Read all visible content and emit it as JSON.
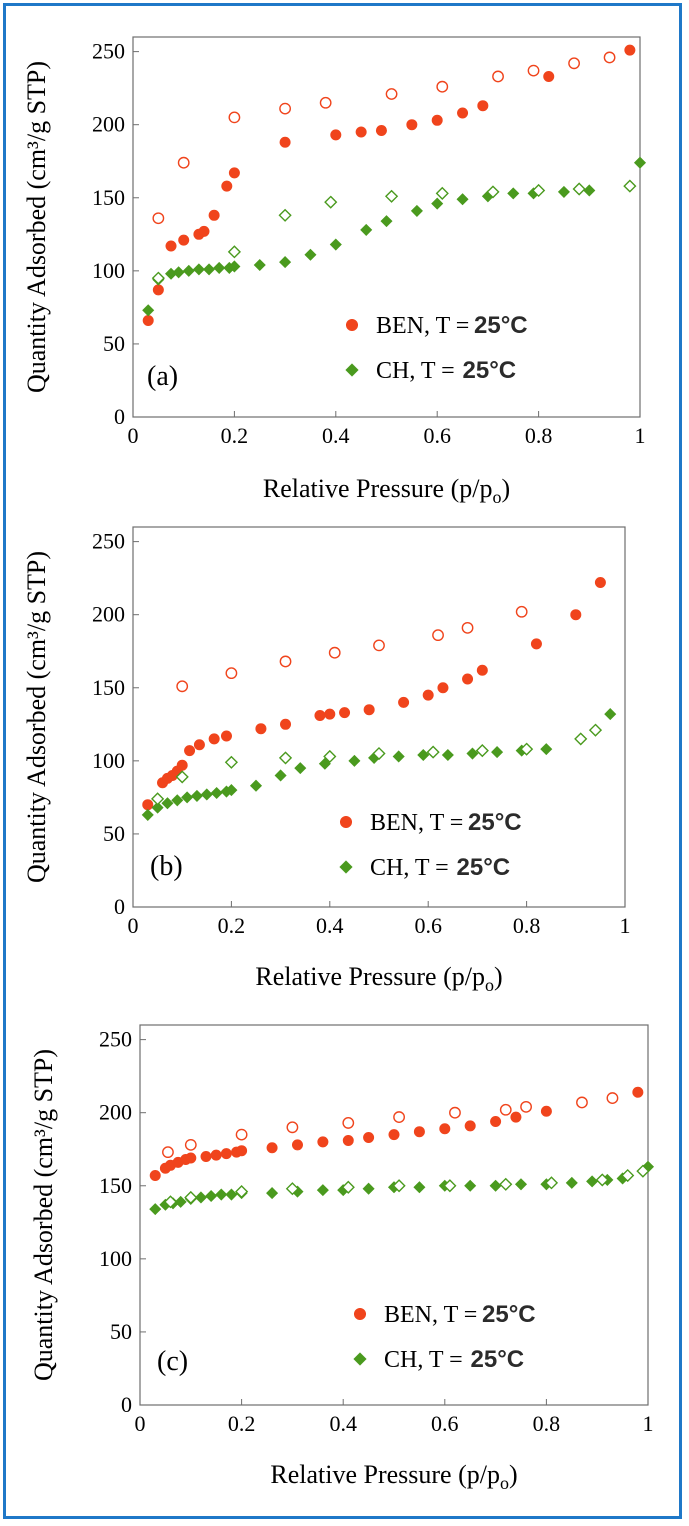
{
  "colors": {
    "ben": "#f0441c",
    "ch": "#4a9a1e",
    "frame": "#1f78c8"
  },
  "chart_data": [
    {
      "type": "scatter",
      "panel_label": "(a)",
      "xlabel": "Relative Pressure (p/p",
      "xlabel_sub": "o",
      "xlabel_end": ")",
      "ylabel": "Quantity Adsorbed (cm³/g STP)",
      "xlim": [
        0,
        1
      ],
      "ylim": [
        0,
        260
      ],
      "x_ticks": [
        "0",
        "0.2",
        "0.4",
        "0.6",
        "0.8",
        "1"
      ],
      "y_ticks": [
        "0",
        "50",
        "100",
        "150",
        "200",
        "250"
      ],
      "legend": [
        {
          "name": "BEN, T =",
          "temp": "25°C",
          "marker": "circle"
        },
        {
          "name": "CH, T =",
          "temp": "25°C",
          "marker": "diamond"
        }
      ],
      "series": [
        {
          "name": "BEN adsorption",
          "marker": "circle",
          "filled": true,
          "points": [
            [
              0.03,
              66
            ],
            [
              0.05,
              87
            ],
            [
              0.075,
              117
            ],
            [
              0.1,
              121
            ],
            [
              0.13,
              125
            ],
            [
              0.14,
              127
            ],
            [
              0.16,
              138
            ],
            [
              0.185,
              158
            ],
            [
              0.2,
              167
            ],
            [
              0.3,
              188
            ],
            [
              0.4,
              193
            ],
            [
              0.45,
              195
            ],
            [
              0.49,
              196
            ],
            [
              0.55,
              200
            ],
            [
              0.6,
              203
            ],
            [
              0.65,
              208
            ],
            [
              0.69,
              213
            ],
            [
              0.82,
              233
            ],
            [
              0.98,
              251
            ]
          ]
        },
        {
          "name": "BEN desorption",
          "marker": "circle",
          "filled": false,
          "points": [
            [
              0.05,
              136
            ],
            [
              0.1,
              174
            ],
            [
              0.2,
              205
            ],
            [
              0.3,
              211
            ],
            [
              0.38,
              215
            ],
            [
              0.51,
              221
            ],
            [
              0.61,
              226
            ],
            [
              0.72,
              233
            ],
            [
              0.79,
              237
            ],
            [
              0.87,
              242
            ],
            [
              0.94,
              246
            ]
          ]
        },
        {
          "name": "CH adsorption",
          "marker": "diamond",
          "filled": true,
          "points": [
            [
              0.03,
              73
            ],
            [
              0.05,
              94
            ],
            [
              0.075,
              98
            ],
            [
              0.09,
              99
            ],
            [
              0.11,
              100
            ],
            [
              0.13,
              101
            ],
            [
              0.15,
              101
            ],
            [
              0.17,
              102
            ],
            [
              0.19,
              102
            ],
            [
              0.2,
              103
            ],
            [
              0.25,
              104
            ],
            [
              0.3,
              106
            ],
            [
              0.35,
              111
            ],
            [
              0.4,
              118
            ],
            [
              0.46,
              128
            ],
            [
              0.5,
              134
            ],
            [
              0.56,
              141
            ],
            [
              0.6,
              146
            ],
            [
              0.65,
              149
            ],
            [
              0.7,
              151
            ],
            [
              0.75,
              153
            ],
            [
              0.79,
              153
            ],
            [
              0.85,
              154
            ],
            [
              0.9,
              155
            ],
            [
              1.0,
              174
            ]
          ]
        },
        {
          "name": "CH desorption",
          "marker": "diamond",
          "filled": false,
          "points": [
            [
              0.05,
              95
            ],
            [
              0.2,
              113
            ],
            [
              0.3,
              138
            ],
            [
              0.39,
              147
            ],
            [
              0.51,
              151
            ],
            [
              0.61,
              153
            ],
            [
              0.71,
              154
            ],
            [
              0.8,
              155
            ],
            [
              0.88,
              156
            ],
            [
              0.98,
              158
            ]
          ]
        }
      ]
    },
    {
      "type": "scatter",
      "panel_label": "(b)",
      "xlabel": "Relative Pressure (p/p",
      "xlabel_sub": "o",
      "xlabel_end": ")",
      "ylabel": "Quantity Adsorbed (cm³/g STP)",
      "xlim": [
        0,
        1
      ],
      "ylim": [
        0,
        260
      ],
      "x_ticks": [
        "0",
        "0.2",
        "0.4",
        "0.6",
        "0.8",
        "1"
      ],
      "y_ticks": [
        "0",
        "50",
        "100",
        "150",
        "200",
        "250"
      ],
      "legend": [
        {
          "name": "BEN, T =",
          "temp": "25°C",
          "marker": "circle"
        },
        {
          "name": "CH, T =",
          "temp": "25°C",
          "marker": "diamond"
        }
      ],
      "series": [
        {
          "name": "BEN adsorption",
          "marker": "circle",
          "filled": true,
          "points": [
            [
              0.03,
              70
            ],
            [
              0.06,
              85
            ],
            [
              0.07,
              88
            ],
            [
              0.08,
              90
            ],
            [
              0.09,
              93
            ],
            [
              0.1,
              97
            ],
            [
              0.115,
              107
            ],
            [
              0.135,
              111
            ],
            [
              0.165,
              115
            ],
            [
              0.19,
              117
            ],
            [
              0.26,
              122
            ],
            [
              0.31,
              125
            ],
            [
              0.38,
              131
            ],
            [
              0.4,
              132
            ],
            [
              0.43,
              133
            ],
            [
              0.48,
              135
            ],
            [
              0.55,
              140
            ],
            [
              0.6,
              145
            ],
            [
              0.63,
              150
            ],
            [
              0.68,
              156
            ],
            [
              0.71,
              162
            ],
            [
              0.82,
              180
            ],
            [
              0.9,
              200
            ],
            [
              0.95,
              222
            ]
          ]
        },
        {
          "name": "BEN desorption",
          "marker": "circle",
          "filled": false,
          "points": [
            [
              0.1,
              151
            ],
            [
              0.2,
              160
            ],
            [
              0.31,
              168
            ],
            [
              0.41,
              174
            ],
            [
              0.5,
              179
            ],
            [
              0.62,
              186
            ],
            [
              0.68,
              191
            ],
            [
              0.79,
              202
            ]
          ]
        },
        {
          "name": "CH adsorption",
          "marker": "diamond",
          "filled": true,
          "points": [
            [
              0.03,
              63
            ],
            [
              0.05,
              68
            ],
            [
              0.07,
              71
            ],
            [
              0.09,
              73
            ],
            [
              0.11,
              75
            ],
            [
              0.13,
              76
            ],
            [
              0.15,
              77
            ],
            [
              0.17,
              78
            ],
            [
              0.19,
              79
            ],
            [
              0.2,
              80
            ],
            [
              0.25,
              83
            ],
            [
              0.3,
              90
            ],
            [
              0.34,
              95
            ],
            [
              0.39,
              98
            ],
            [
              0.45,
              100
            ],
            [
              0.49,
              102
            ],
            [
              0.54,
              103
            ],
            [
              0.59,
              104
            ],
            [
              0.64,
              104
            ],
            [
              0.69,
              105
            ],
            [
              0.74,
              106
            ],
            [
              0.79,
              107
            ],
            [
              0.84,
              108
            ],
            [
              0.97,
              132
            ]
          ]
        },
        {
          "name": "CH desorption",
          "marker": "diamond",
          "filled": false,
          "points": [
            [
              0.05,
              74
            ],
            [
              0.1,
              89
            ],
            [
              0.2,
              99
            ],
            [
              0.31,
              102
            ],
            [
              0.4,
              103
            ],
            [
              0.5,
              105
            ],
            [
              0.61,
              106
            ],
            [
              0.71,
              107
            ],
            [
              0.8,
              108
            ],
            [
              0.91,
              115
            ],
            [
              0.94,
              121
            ]
          ]
        }
      ]
    },
    {
      "type": "scatter",
      "panel_label": "(c)",
      "xlabel": "Relative Pressure (p/p",
      "xlabel_sub": "o",
      "xlabel_end": ")",
      "ylabel": "Quantity Adsorbed (cm³/g STP)",
      "xlim": [
        0,
        1
      ],
      "ylim": [
        0,
        260
      ],
      "x_ticks": [
        "0",
        "0.2",
        "0.4",
        "0.6",
        "0.8",
        "1"
      ],
      "y_ticks": [
        "0",
        "50",
        "100",
        "150",
        "200",
        "250"
      ],
      "legend": [
        {
          "name": "BEN, T =",
          "temp": "25°C",
          "marker": "circle"
        },
        {
          "name": "CH, T =",
          "temp": "25°C",
          "marker": "diamond"
        }
      ],
      "series": [
        {
          "name": "BEN adsorption",
          "marker": "circle",
          "filled": true,
          "points": [
            [
              0.03,
              157
            ],
            [
              0.05,
              162
            ],
            [
              0.06,
              164
            ],
            [
              0.075,
              166
            ],
            [
              0.09,
              168
            ],
            [
              0.1,
              169
            ],
            [
              0.13,
              170
            ],
            [
              0.15,
              171
            ],
            [
              0.17,
              172
            ],
            [
              0.19,
              173
            ],
            [
              0.2,
              174
            ],
            [
              0.26,
              176
            ],
            [
              0.31,
              178
            ],
            [
              0.36,
              180
            ],
            [
              0.41,
              181
            ],
            [
              0.45,
              183
            ],
            [
              0.5,
              185
            ],
            [
              0.55,
              187
            ],
            [
              0.6,
              189
            ],
            [
              0.65,
              191
            ],
            [
              0.7,
              194
            ],
            [
              0.74,
              197
            ],
            [
              0.8,
              201
            ],
            [
              0.98,
              214
            ]
          ]
        },
        {
          "name": "BEN desorption",
          "marker": "circle",
          "filled": false,
          "points": [
            [
              0.055,
              173
            ],
            [
              0.1,
              178
            ],
            [
              0.2,
              185
            ],
            [
              0.3,
              190
            ],
            [
              0.41,
              193
            ],
            [
              0.51,
              197
            ],
            [
              0.62,
              200
            ],
            [
              0.72,
              202
            ],
            [
              0.76,
              204
            ],
            [
              0.87,
              207
            ],
            [
              0.93,
              210
            ]
          ]
        },
        {
          "name": "CH adsorption",
          "marker": "diamond",
          "filled": true,
          "points": [
            [
              0.03,
              134
            ],
            [
              0.05,
              137
            ],
            [
              0.065,
              138
            ],
            [
              0.08,
              139
            ],
            [
              0.1,
              141
            ],
            [
              0.12,
              142
            ],
            [
              0.14,
              143
            ],
            [
              0.16,
              144
            ],
            [
              0.18,
              144
            ],
            [
              0.2,
              145
            ],
            [
              0.26,
              145
            ],
            [
              0.31,
              146
            ],
            [
              0.36,
              147
            ],
            [
              0.4,
              147
            ],
            [
              0.45,
              148
            ],
            [
              0.5,
              149
            ],
            [
              0.55,
              149
            ],
            [
              0.6,
              150
            ],
            [
              0.65,
              150
            ],
            [
              0.7,
              150
            ],
            [
              0.75,
              151
            ],
            [
              0.8,
              151
            ],
            [
              0.85,
              152
            ],
            [
              0.89,
              153
            ],
            [
              0.92,
              154
            ],
            [
              0.95,
              155
            ],
            [
              1.0,
              163
            ]
          ]
        },
        {
          "name": "CH desorption",
          "marker": "diamond",
          "filled": false,
          "points": [
            [
              0.06,
              139
            ],
            [
              0.1,
              142
            ],
            [
              0.2,
              146
            ],
            [
              0.3,
              148
            ],
            [
              0.41,
              149
            ],
            [
              0.51,
              150
            ],
            [
              0.61,
              150
            ],
            [
              0.72,
              151
            ],
            [
              0.81,
              152
            ],
            [
              0.91,
              154
            ],
            [
              0.96,
              157
            ],
            [
              0.99,
              160
            ]
          ]
        }
      ]
    }
  ]
}
